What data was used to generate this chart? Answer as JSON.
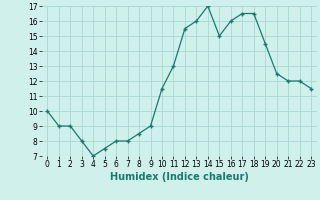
{
  "x": [
    0,
    1,
    2,
    3,
    4,
    5,
    6,
    7,
    8,
    9,
    10,
    11,
    12,
    13,
    14,
    15,
    16,
    17,
    18,
    19,
    20,
    21,
    22,
    23
  ],
  "y": [
    10,
    9,
    9,
    8,
    7,
    7.5,
    8,
    8,
    8.5,
    9,
    11.5,
    13,
    15.5,
    16,
    17,
    15,
    16,
    16.5,
    16.5,
    14.5,
    12.5,
    12,
    12,
    11.5
  ],
  "xlabel": "Humidex (Indice chaleur)",
  "ylim": [
    7,
    17
  ],
  "xlim": [
    -0.5,
    23.5
  ],
  "yticks": [
    7,
    8,
    9,
    10,
    11,
    12,
    13,
    14,
    15,
    16,
    17
  ],
  "xticks": [
    0,
    1,
    2,
    3,
    4,
    5,
    6,
    7,
    8,
    9,
    10,
    11,
    12,
    13,
    14,
    15,
    16,
    17,
    18,
    19,
    20,
    21,
    22,
    23
  ],
  "line_color": "#1a7a6e",
  "marker": "+",
  "bg_color": "#cff0eb",
  "grid_color": "#aad8d0",
  "xlabel_fontsize": 7,
  "tick_fontsize": 5.5
}
